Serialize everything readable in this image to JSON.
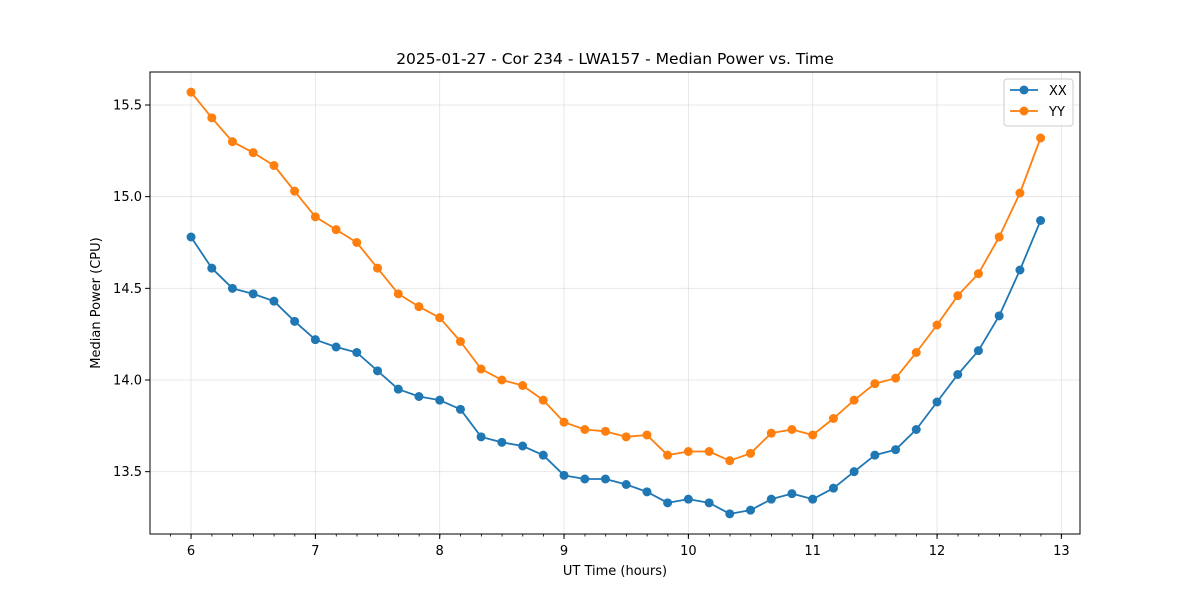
{
  "chart_data": {
    "type": "line",
    "title": "2025-01-27 - Cor 234 - LWA157 - Median Power vs. Time",
    "xlabel": "UT Time (hours)",
    "ylabel": "Median Power (CPU)",
    "xlim": [
      5.67,
      13.15
    ],
    "ylim": [
      13.16,
      15.68
    ],
    "xticks": [
      6,
      7,
      8,
      9,
      10,
      11,
      12,
      13
    ],
    "xticks_minor_step": 0.1667,
    "yticks": [
      13.5,
      14.0,
      14.5,
      15.0,
      15.5
    ],
    "ytick_labels": [
      "13.5",
      "14.0",
      "14.5",
      "15.0",
      "15.5"
    ],
    "grid": true,
    "legend_position": "top-right",
    "x": [
      6.0,
      6.167,
      6.333,
      6.5,
      6.667,
      6.833,
      7.0,
      7.167,
      7.333,
      7.5,
      7.667,
      7.833,
      8.0,
      8.167,
      8.333,
      8.5,
      8.667,
      8.833,
      9.0,
      9.167,
      9.333,
      9.5,
      9.667,
      9.833,
      10.0,
      10.167,
      10.333,
      10.5,
      10.667,
      10.833,
      11.0,
      11.167,
      11.333,
      11.5,
      11.667,
      11.833,
      12.0,
      12.167,
      12.333,
      12.5,
      12.667,
      12.833
    ],
    "series": [
      {
        "name": "XX",
        "color": "#1f77b4",
        "values": [
          14.78,
          14.61,
          14.5,
          14.47,
          14.43,
          14.32,
          14.22,
          14.18,
          14.15,
          14.05,
          13.95,
          13.91,
          13.89,
          13.84,
          13.69,
          13.66,
          13.64,
          13.59,
          13.48,
          13.46,
          13.46,
          13.43,
          13.39,
          13.33,
          13.35,
          13.33,
          13.27,
          13.29,
          13.35,
          13.38,
          13.35,
          13.41,
          13.5,
          13.59,
          13.62,
          13.73,
          13.88,
          14.03,
          14.16,
          14.35,
          14.6,
          14.87
        ]
      },
      {
        "name": "YY",
        "color": "#ff7f0e",
        "values": [
          15.57,
          15.43,
          15.3,
          15.24,
          15.17,
          15.03,
          14.89,
          14.82,
          14.75,
          14.61,
          14.47,
          14.4,
          14.34,
          14.21,
          14.06,
          14.0,
          13.97,
          13.89,
          13.77,
          13.73,
          13.72,
          13.69,
          13.7,
          13.59,
          13.61,
          13.61,
          13.56,
          13.6,
          13.71,
          13.73,
          13.7,
          13.79,
          13.89,
          13.98,
          14.01,
          14.15,
          14.3,
          14.46,
          14.58,
          14.78,
          15.02,
          15.32
        ]
      }
    ]
  }
}
